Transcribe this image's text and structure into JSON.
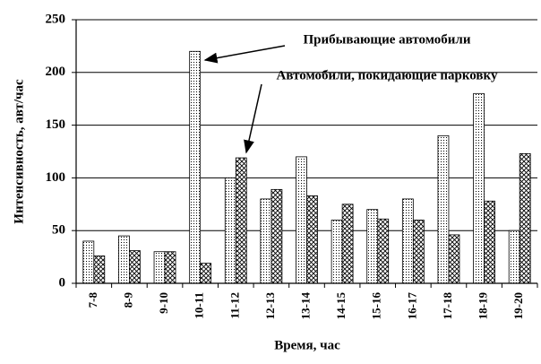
{
  "chart_data": {
    "type": "bar",
    "y_label": "Интенсивность, авт/час",
    "x_label": "Время, час",
    "categories": [
      "7-8",
      "8-9",
      "9-10",
      "10-11",
      "11-12",
      "12-13",
      "13-14",
      "14-15",
      "15-16",
      "16-17",
      "17-18",
      "18-19",
      "19-20"
    ],
    "series": [
      {
        "name": "Прибывающие автомобили",
        "color": "#000000",
        "pattern": "dots",
        "values": [
          40,
          45,
          30,
          220,
          100,
          80,
          120,
          60,
          70,
          80,
          140,
          180,
          50
        ]
      },
      {
        "name": "Автомобили, покидающие парковку",
        "color": "#000000",
        "pattern": "crosshatch",
        "values": [
          26,
          31,
          30,
          19,
          119,
          89,
          83,
          75,
          61,
          60,
          46,
          78,
          123
        ]
      }
    ],
    "ylim": [
      0,
      250
    ],
    "yticks": [
      0,
      50,
      100,
      150,
      200,
      250
    ],
    "grid": true
  }
}
